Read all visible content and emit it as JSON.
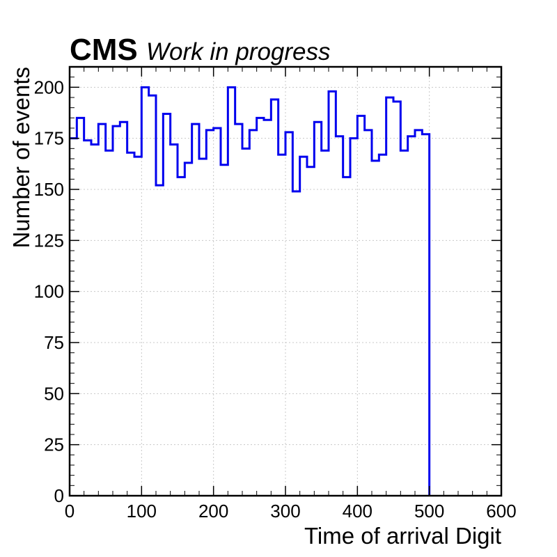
{
  "header": {
    "experiment": "CMS",
    "status": "Work in progress"
  },
  "chart_data": {
    "type": "histogram",
    "xlabel": "Time of arrival Digit",
    "ylabel": "Number of events",
    "xlim": [
      0,
      600
    ],
    "ylim": [
      0,
      210
    ],
    "xticks": [
      0,
      100,
      200,
      300,
      400,
      500,
      600
    ],
    "yticks": [
      0,
      25,
      50,
      75,
      100,
      125,
      150,
      175,
      200
    ],
    "grid": true,
    "bin_width": 10,
    "bin_start": 0,
    "values": [
      175,
      185,
      174,
      172,
      182,
      169,
      181,
      183,
      168,
      166,
      200,
      196,
      152,
      187,
      172,
      156,
      163,
      182,
      165,
      179,
      180,
      162,
      200,
      182,
      170,
      179,
      185,
      184,
      194,
      167,
      178,
      149,
      166,
      161,
      183,
      169,
      198,
      176,
      156,
      175,
      186,
      179,
      164,
      167,
      195,
      193,
      169,
      176,
      179,
      177
    ],
    "colors": {
      "line": "#0000ee",
      "grid": "#c8c8c8",
      "axes": "#000000"
    }
  }
}
